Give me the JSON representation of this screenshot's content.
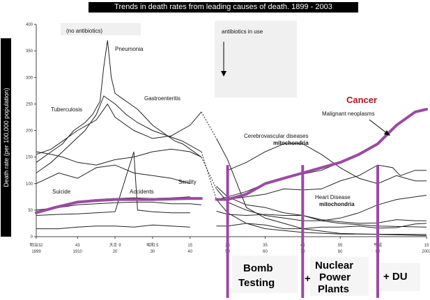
{
  "title": "Trends in death rates from leading causes of death. 1899 - 2003",
  "ylabel": "Death rate (per 100,000 population)",
  "notes": {
    "no_antibiotics": "(no antibiotics)",
    "antibiotics": "antibiotics in use"
  },
  "labels": {
    "pneumonia": "Pneumonia",
    "gastroenteritis": "Gastroenteritis",
    "tuberculosis": "Tuberculosis",
    "cerebrovascular": "Cerebrovascular diseases",
    "mitochondria1": "mitochondria",
    "malignant": "Malignant neoplasms",
    "cancer": "Cancer",
    "suicide": "Suicide",
    "accidents": "Accidents",
    "senility": "Senility",
    "heart": "Heart Disease",
    "mitochondria2": "mitochondria"
  },
  "boxes": {
    "bomb1": "Bomb",
    "bomb2": "Testing",
    "plus1": "+",
    "nuc1": "Nuclear",
    "nuc2": "Power",
    "nuc3": "Plants",
    "du": "+ DU"
  },
  "x_ticks_top": [
    "明治32",
    "43",
    "大正 9",
    "昭和 5",
    "15",
    "25",
    "35",
    "45",
    "55",
    "平成",
    "15"
  ],
  "x_ticks_bottom": [
    "1899",
    "1910",
    "20",
    "30",
    "40",
    "50",
    "60",
    "70",
    "80",
    "90",
    "2003"
  ],
  "y_ticks": [
    "0",
    "50",
    "100",
    "150",
    "200",
    "250",
    "300",
    "350",
    "400"
  ],
  "colors": {
    "highlight": "#9b4aa3",
    "cancer_label": "#b0121b",
    "line": "#222222"
  },
  "chart_data": {
    "type": "line",
    "ylim": [
      0,
      400
    ],
    "xlim": [
      1899,
      2003
    ],
    "series": [
      {
        "name": "Pneumonia",
        "points": [
          [
            1899,
            140
          ],
          [
            1903,
            160
          ],
          [
            1906,
            175
          ],
          [
            1909,
            200
          ],
          [
            1912,
            215
          ],
          [
            1914,
            230
          ],
          [
            1916,
            255
          ],
          [
            1917,
            320
          ],
          [
            1918,
            370
          ],
          [
            1919,
            300
          ],
          [
            1920,
            270
          ],
          [
            1922,
            260
          ],
          [
            1924,
            250
          ],
          [
            1926,
            240
          ],
          [
            1928,
            225
          ],
          [
            1930,
            210
          ],
          [
            1932,
            200
          ],
          [
            1934,
            190
          ],
          [
            1936,
            180
          ],
          [
            1938,
            175
          ],
          [
            1940,
            165
          ],
          [
            1943,
            150
          ],
          [
            1947,
            90
          ],
          [
            1950,
            65
          ],
          [
            1955,
            50
          ],
          [
            1960,
            40
          ],
          [
            1965,
            35
          ],
          [
            1970,
            30
          ],
          [
            1975,
            30
          ],
          [
            1980,
            35
          ],
          [
            1985,
            45
          ],
          [
            1990,
            60
          ],
          [
            1995,
            70
          ],
          [
            2000,
            75
          ],
          [
            2003,
            78
          ]
        ]
      },
      {
        "name": "Gastroenteritis",
        "points": [
          [
            1899,
            120
          ],
          [
            1903,
            140
          ],
          [
            1906,
            160
          ],
          [
            1909,
            180
          ],
          [
            1912,
            200
          ],
          [
            1915,
            230
          ],
          [
            1917,
            265
          ],
          [
            1920,
            250
          ],
          [
            1923,
            230
          ],
          [
            1926,
            215
          ],
          [
            1930,
            200
          ],
          [
            1934,
            190
          ],
          [
            1938,
            180
          ],
          [
            1943,
            160
          ],
          [
            1947,
            70
          ],
          [
            1950,
            45
          ],
          [
            1955,
            25
          ],
          [
            1960,
            15
          ],
          [
            1970,
            8
          ],
          [
            1980,
            5
          ],
          [
            2003,
            4
          ]
        ]
      },
      {
        "name": "Tuberculosis",
        "points": [
          [
            1899,
            155
          ],
          [
            1903,
            165
          ],
          [
            1906,
            180
          ],
          [
            1910,
            200
          ],
          [
            1915,
            220
          ],
          [
            1918,
            250
          ],
          [
            1920,
            225
          ],
          [
            1925,
            200
          ],
          [
            1930,
            185
          ],
          [
            1935,
            190
          ],
          [
            1940,
            210
          ],
          [
            1943,
            235
          ],
          [
            1947,
            185
          ],
          [
            1950,
            145
          ],
          [
            1955,
            55
          ],
          [
            1960,
            35
          ],
          [
            1965,
            25
          ],
          [
            1970,
            15
          ],
          [
            1980,
            6
          ],
          [
            2003,
            2
          ]
        ]
      },
      {
        "name": "Cerebrovascular diseases",
        "points": [
          [
            1899,
            160
          ],
          [
            1903,
            155
          ],
          [
            1906,
            150
          ],
          [
            1910,
            140
          ],
          [
            1915,
            135
          ],
          [
            1920,
            145
          ],
          [
            1925,
            150
          ],
          [
            1930,
            160
          ],
          [
            1935,
            165
          ],
          [
            1940,
            160
          ],
          [
            1943,
            150
          ],
          [
            1950,
            125
          ],
          [
            1955,
            140
          ],
          [
            1960,
            160
          ],
          [
            1965,
            175
          ],
          [
            1970,
            175
          ],
          [
            1975,
            155
          ],
          [
            1980,
            130
          ],
          [
            1985,
            110
          ],
          [
            1990,
            100
          ],
          [
            1995,
            115
          ],
          [
            2000,
            105
          ],
          [
            2003,
            105
          ]
        ]
      },
      {
        "name": "Malignant neoplasms",
        "points": [
          [
            1899,
            50
          ],
          [
            1905,
            55
          ],
          [
            1910,
            65
          ],
          [
            1915,
            70
          ],
          [
            1920,
            72
          ],
          [
            1925,
            73
          ],
          [
            1930,
            72
          ],
          [
            1935,
            73
          ],
          [
            1940,
            75
          ],
          [
            1947,
            70
          ],
          [
            1950,
            75
          ],
          [
            1955,
            85
          ],
          [
            1960,
            100
          ],
          [
            1965,
            110
          ],
          [
            1970,
            118
          ],
          [
            1975,
            125
          ],
          [
            1980,
            140
          ],
          [
            1985,
            155
          ],
          [
            1990,
            175
          ],
          [
            1995,
            210
          ],
          [
            2000,
            235
          ],
          [
            2003,
            240
          ]
        ]
      },
      {
        "name": "Heart Disease",
        "points": [
          [
            1899,
            50
          ],
          [
            1905,
            55
          ],
          [
            1910,
            60
          ],
          [
            1915,
            62
          ],
          [
            1920,
            64
          ],
          [
            1925,
            65
          ],
          [
            1930,
            65
          ],
          [
            1935,
            62
          ],
          [
            1940,
            62
          ],
          [
            1943,
            60
          ],
          [
            1950,
            70
          ],
          [
            1955,
            75
          ],
          [
            1960,
            80
          ],
          [
            1965,
            90
          ],
          [
            1970,
            88
          ],
          [
            1975,
            90
          ],
          [
            1980,
            105
          ],
          [
            1985,
            115
          ],
          [
            1990,
            135
          ],
          [
            1994,
            130
          ],
          [
            1996,
            115
          ],
          [
            2000,
            125
          ],
          [
            2003,
            125
          ]
        ]
      },
      {
        "name": "Senility",
        "points": [
          [
            1899,
            100
          ],
          [
            1905,
            120
          ],
          [
            1910,
            110
          ],
          [
            1915,
            130
          ],
          [
            1920,
            135
          ],
          [
            1925,
            120
          ],
          [
            1930,
            115
          ],
          [
            1935,
            110
          ],
          [
            1940,
            100
          ],
          [
            1947,
            95
          ],
          [
            1950,
            75
          ],
          [
            1955,
            60
          ],
          [
            1960,
            55
          ],
          [
            1965,
            45
          ],
          [
            1970,
            40
          ],
          [
            1975,
            30
          ],
          [
            1980,
            25
          ],
          [
            1990,
            20
          ],
          [
            2003,
            18
          ]
        ]
      },
      {
        "name": "Accidents",
        "points": [
          [
            1899,
            40
          ],
          [
            1905,
            42
          ],
          [
            1910,
            43
          ],
          [
            1915,
            45
          ],
          [
            1920,
            47
          ],
          [
            1925,
            160
          ],
          [
            1926,
            50
          ],
          [
            1930,
            47
          ],
          [
            1935,
            45
          ],
          [
            1940,
            45
          ],
          [
            1947,
            48
          ],
          [
            1950,
            42
          ],
          [
            1955,
            40
          ],
          [
            1960,
            42
          ],
          [
            1965,
            40
          ],
          [
            1970,
            40
          ],
          [
            1975,
            32
          ],
          [
            1980,
            28
          ],
          [
            1985,
            25
          ],
          [
            1990,
            26
          ],
          [
            1995,
            32
          ],
          [
            2000,
            30
          ],
          [
            2003,
            30
          ]
        ]
      },
      {
        "name": "Suicide",
        "points": [
          [
            1899,
            15
          ],
          [
            1905,
            15
          ],
          [
            1910,
            18
          ],
          [
            1915,
            20
          ],
          [
            1920,
            20
          ],
          [
            1925,
            18
          ],
          [
            1930,
            22
          ],
          [
            1935,
            20
          ],
          [
            1940,
            18
          ],
          [
            1947,
            20
          ],
          [
            1950,
            20
          ],
          [
            1955,
            25
          ],
          [
            1960,
            22
          ],
          [
            1965,
            15
          ],
          [
            1970,
            15
          ],
          [
            1975,
            18
          ],
          [
            1980,
            18
          ],
          [
            1985,
            20
          ],
          [
            1990,
            16
          ],
          [
            1995,
            17
          ],
          [
            2000,
            24
          ],
          [
            2003,
            25
          ]
        ]
      }
    ],
    "highlight_points": [
      [
        1899,
        45
      ],
      [
        1904,
        55
      ],
      [
        1910,
        65
      ],
      [
        1915,
        68
      ],
      [
        1920,
        70
      ],
      [
        1925,
        70
      ],
      [
        1930,
        70
      ],
      [
        1935,
        71
      ],
      [
        1940,
        72
      ],
      [
        1943,
        72
      ],
      [
        1947,
        70
      ],
      [
        1950,
        70
      ],
      [
        1955,
        80
      ],
      [
        1960,
        100
      ],
      [
        1965,
        110
      ],
      [
        1970,
        120
      ],
      [
        1975,
        130
      ],
      [
        1980,
        140
      ],
      [
        1985,
        155
      ],
      [
        1990,
        175
      ],
      [
        1995,
        210
      ],
      [
        2000,
        235
      ],
      [
        2003,
        240
      ]
    ],
    "marker_years": [
      1950,
      1970,
      1990
    ]
  }
}
